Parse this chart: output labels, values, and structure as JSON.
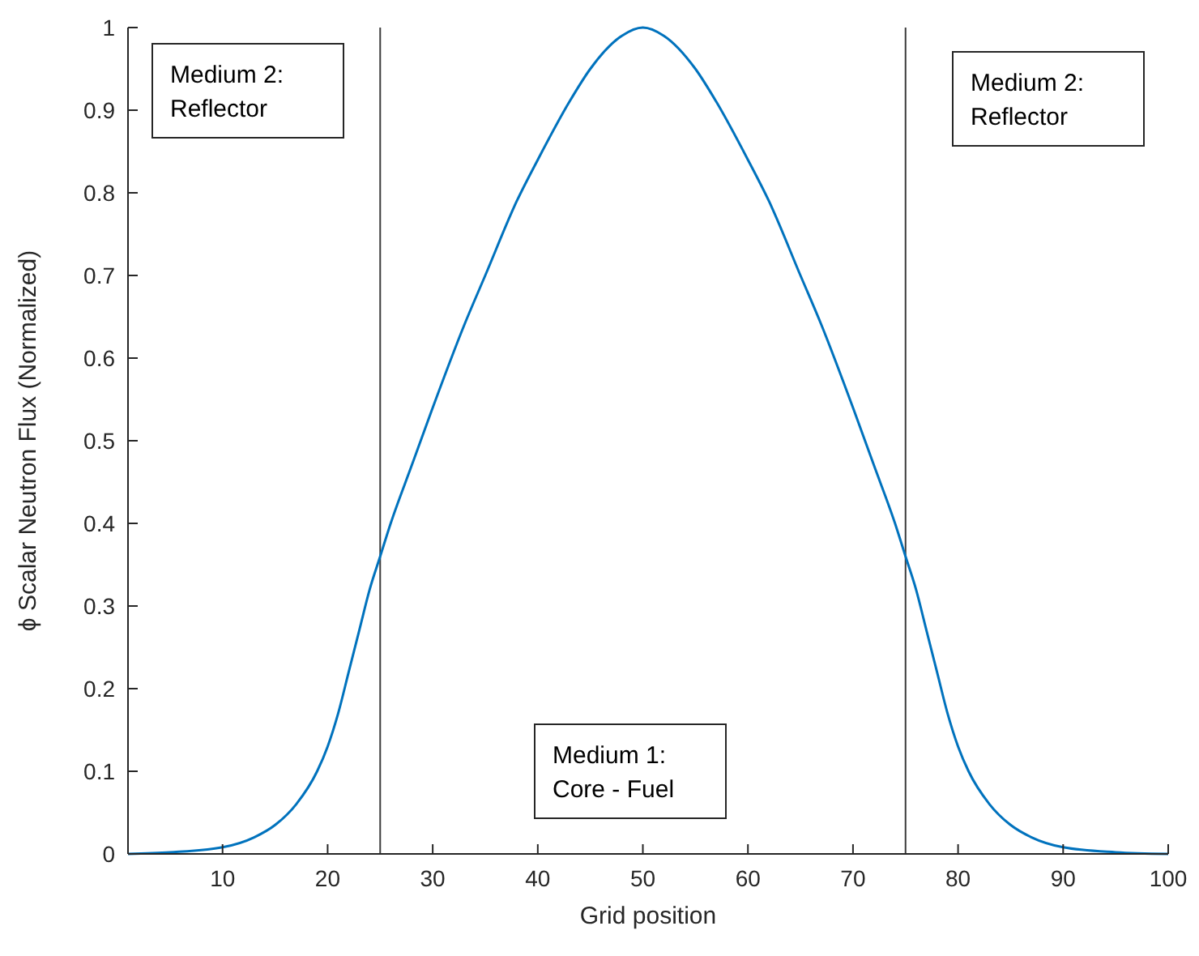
{
  "chart_data": {
    "type": "line",
    "xlabel": "Grid position",
    "ylabel": "ϕ Scalar Neutron Flux (Normalized)",
    "x": [
      1,
      5,
      10,
      13,
      15,
      17,
      19,
      20,
      21,
      22,
      23,
      24,
      25,
      26,
      28,
      30,
      33,
      35,
      38,
      40,
      43,
      45,
      48,
      50,
      52,
      55,
      57,
      60,
      62,
      65,
      67,
      70,
      72,
      74,
      75,
      76,
      77,
      78,
      79,
      80,
      81,
      83,
      85,
      87,
      90,
      95,
      100
    ],
    "series": [
      {
        "color": "#0072bd",
        "values": [
          0,
          0.002,
          0.008,
          0.02,
          0.035,
          0.06,
          0.1,
          0.13,
          0.17,
          0.22,
          0.27,
          0.32,
          0.36,
          0.4,
          0.47,
          0.54,
          0.64,
          0.7,
          0.79,
          0.84,
          0.91,
          0.95,
          0.99,
          1.0,
          0.99,
          0.95,
          0.91,
          0.84,
          0.79,
          0.7,
          0.64,
          0.54,
          0.47,
          0.4,
          0.36,
          0.32,
          0.27,
          0.22,
          0.17,
          0.13,
          0.1,
          0.06,
          0.035,
          0.02,
          0.008,
          0.002,
          0
        ]
      }
    ],
    "xlim": [
      1,
      100
    ],
    "xticks": [
      10,
      20,
      30,
      40,
      50,
      60,
      70,
      80,
      90,
      100
    ],
    "ylim": [
      0,
      1
    ],
    "yticks": [
      0,
      0.1,
      0.2,
      0.3,
      0.4,
      0.5,
      0.6,
      0.7,
      0.8,
      0.9,
      1
    ],
    "ref_lines": [
      {
        "axis": "x",
        "value": 25,
        "color": "#3c3c3c"
      },
      {
        "axis": "x",
        "value": 75,
        "color": "#3c3c3c"
      }
    ],
    "annotations": [
      "Medium 2:\nReflector",
      "Medium 1:\nCore - Fuel",
      "Medium 2:\nReflector"
    ],
    "grid": false,
    "marker": "none",
    "line_style": "solid"
  }
}
